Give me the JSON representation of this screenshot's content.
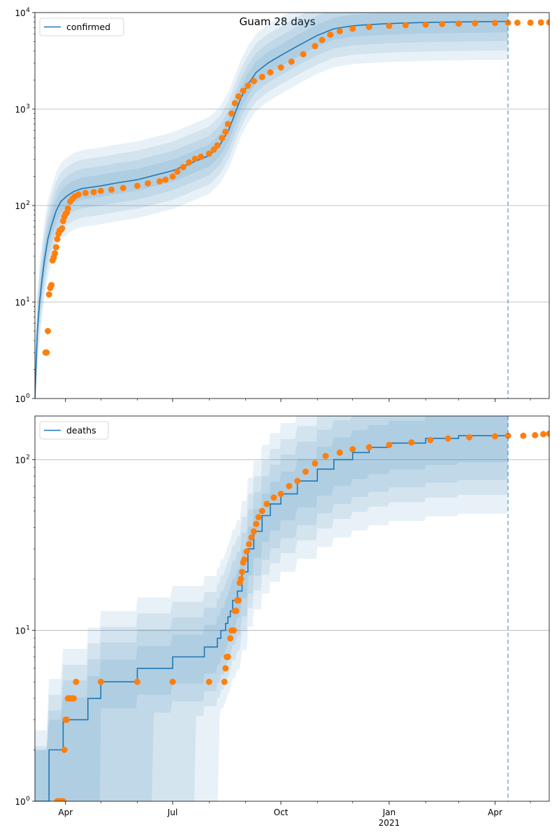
{
  "figure": {
    "title": "Guam 28 days"
  },
  "colors": {
    "model": "#1f77b4",
    "observed": "#ff7f0e",
    "band": "#1f77b4",
    "grid": "#b0b0b0",
    "forecast_line": "#1f77b4"
  },
  "x_axis": {
    "ticks": [
      {
        "date": "2020-04-01",
        "label": "Apr",
        "sublabel": ""
      },
      {
        "date": "2020-07-01",
        "label": "Jul",
        "sublabel": ""
      },
      {
        "date": "2020-10-01",
        "label": "Oct",
        "sublabel": ""
      },
      {
        "date": "2021-01-01",
        "label": "Jan",
        "sublabel": "2021"
      },
      {
        "date": "2021-04-01",
        "label": "Apr",
        "sublabel": ""
      }
    ],
    "minor_ticks": [
      "2020-05-01",
      "2020-06-01",
      "2020-08-01",
      "2020-09-01",
      "2020-11-01",
      "2020-12-01",
      "2021-02-01",
      "2021-03-01",
      "2021-05-01"
    ]
  },
  "chart_data": [
    {
      "type": "line",
      "legend": [
        "confirmed"
      ],
      "legend_loc": "upper left",
      "yscale": "log",
      "ylim": [
        1,
        10000
      ],
      "xlim": [
        "2020-03-06",
        "2021-05-17"
      ],
      "grid": "y",
      "yticks": [
        {
          "value": 1,
          "base": "10",
          "exp": "0"
        },
        {
          "value": 10,
          "base": "10",
          "exp": "1"
        },
        {
          "value": 100,
          "base": "10",
          "exp": "2"
        },
        {
          "value": 1000,
          "base": "10",
          "exp": "3"
        },
        {
          "value": 10000,
          "base": "10",
          "exp": "4"
        }
      ],
      "forecast_start": "2021-04-12",
      "series": [
        {
          "name": "confirmed",
          "kind": "model",
          "points": [
            [
              "2020-03-06",
              1
            ],
            [
              "2020-03-08",
              5
            ],
            [
              "2020-03-10",
              10
            ],
            [
              "2020-03-12",
              17
            ],
            [
              "2020-03-14",
              27
            ],
            [
              "2020-03-17",
              45
            ],
            [
              "2020-03-20",
              62
            ],
            [
              "2020-03-24",
              88
            ],
            [
              "2020-03-28",
              110
            ],
            [
              "2020-04-02",
              125
            ],
            [
              "2020-04-08",
              140
            ],
            [
              "2020-04-15",
              150
            ],
            [
              "2020-05-01",
              160
            ],
            [
              "2020-05-15",
              172
            ],
            [
              "2020-06-01",
              185
            ],
            [
              "2020-06-15",
              205
            ],
            [
              "2020-07-01",
              230
            ],
            [
              "2020-07-15",
              270
            ],
            [
              "2020-08-01",
              330
            ],
            [
              "2020-08-10",
              420
            ],
            [
              "2020-08-18",
              620
            ],
            [
              "2020-08-23",
              900
            ],
            [
              "2020-08-28",
              1300
            ],
            [
              "2020-09-03",
              1800
            ],
            [
              "2020-09-10",
              2400
            ],
            [
              "2020-09-20",
              3000
            ],
            [
              "2020-10-01",
              3600
            ],
            [
              "2020-10-15",
              4500
            ],
            [
              "2020-11-01",
              5800
            ],
            [
              "2020-11-15",
              6800
            ],
            [
              "2020-12-01",
              7300
            ],
            [
              "2020-12-15",
              7500
            ],
            [
              "2021-01-01",
              7700
            ],
            [
              "2021-02-01",
              7900
            ],
            [
              "2021-03-01",
              8000
            ],
            [
              "2021-04-12",
              8100
            ]
          ],
          "band_factors": [
            1.3,
            1.6,
            2.0,
            2.5
          ]
        },
        {
          "name": "observed",
          "kind": "observed",
          "points": [
            [
              "2020-03-15",
              3
            ],
            [
              "2020-03-16",
              3
            ],
            [
              "2020-03-17",
              5
            ],
            [
              "2020-03-18",
              12
            ],
            [
              "2020-03-19",
              14
            ],
            [
              "2020-03-20",
              15
            ],
            [
              "2020-03-21",
              27
            ],
            [
              "2020-03-22",
              29
            ],
            [
              "2020-03-23",
              32
            ],
            [
              "2020-03-24",
              37
            ],
            [
              "2020-03-25",
              45
            ],
            [
              "2020-03-26",
              51
            ],
            [
              "2020-03-27",
              55
            ],
            [
              "2020-03-28",
              56
            ],
            [
              "2020-03-29",
              58
            ],
            [
              "2020-03-30",
              69
            ],
            [
              "2020-03-31",
              77
            ],
            [
              "2020-04-01",
              82
            ],
            [
              "2020-04-02",
              84
            ],
            [
              "2020-04-03",
              93
            ],
            [
              "2020-04-05",
              110
            ],
            [
              "2020-04-07",
              118
            ],
            [
              "2020-04-09",
              125
            ],
            [
              "2020-04-12",
              130
            ],
            [
              "2020-04-18",
              135
            ],
            [
              "2020-04-25",
              138
            ],
            [
              "2020-05-01",
              142
            ],
            [
              "2020-05-10",
              146
            ],
            [
              "2020-05-20",
              152
            ],
            [
              "2020-06-01",
              160
            ],
            [
              "2020-06-10",
              170
            ],
            [
              "2020-06-20",
              178
            ],
            [
              "2020-06-25",
              185
            ],
            [
              "2020-07-01",
              200
            ],
            [
              "2020-07-05",
              225
            ],
            [
              "2020-07-10",
              250
            ],
            [
              "2020-07-15",
              280
            ],
            [
              "2020-07-20",
              305
            ],
            [
              "2020-07-25",
              320
            ],
            [
              "2020-08-01",
              345
            ],
            [
              "2020-08-05",
              380
            ],
            [
              "2020-08-08",
              420
            ],
            [
              "2020-08-12",
              500
            ],
            [
              "2020-08-15",
              580
            ],
            [
              "2020-08-17",
              700
            ],
            [
              "2020-08-20",
              900
            ],
            [
              "2020-08-23",
              1150
            ],
            [
              "2020-08-26",
              1350
            ],
            [
              "2020-08-30",
              1550
            ],
            [
              "2020-09-03",
              1750
            ],
            [
              "2020-09-08",
              1950
            ],
            [
              "2020-09-15",
              2150
            ],
            [
              "2020-09-22",
              2400
            ],
            [
              "2020-10-01",
              2700
            ],
            [
              "2020-10-10",
              3100
            ],
            [
              "2020-10-20",
              3700
            ],
            [
              "2020-10-30",
              4500
            ],
            [
              "2020-11-05",
              5200
            ],
            [
              "2020-11-12",
              5900
            ],
            [
              "2020-11-20",
              6400
            ],
            [
              "2020-12-01",
              6800
            ],
            [
              "2020-12-15",
              7100
            ],
            [
              "2021-01-01",
              7300
            ],
            [
              "2021-01-15",
              7400
            ],
            [
              "2021-02-01",
              7500
            ],
            [
              "2021-02-15",
              7600
            ],
            [
              "2021-03-01",
              7700
            ],
            [
              "2021-03-15",
              7750
            ],
            [
              "2021-04-01",
              7800
            ],
            [
              "2021-04-12",
              7850
            ],
            [
              "2021-04-20",
              7850
            ],
            [
              "2021-05-01",
              7870
            ],
            [
              "2021-05-10",
              7900
            ],
            [
              "2021-05-17",
              7920
            ]
          ]
        }
      ]
    },
    {
      "type": "line",
      "legend": [
        "deaths"
      ],
      "legend_loc": "upper left",
      "yscale": "log",
      "ylim": [
        1,
        180
      ],
      "xlim": [
        "2020-03-06",
        "2021-05-17"
      ],
      "grid": "y",
      "yticks": [
        {
          "value": 1,
          "base": "10",
          "exp": "0"
        },
        {
          "value": 10,
          "base": "10",
          "exp": "1"
        },
        {
          "value": 100,
          "base": "10",
          "exp": "2"
        }
      ],
      "forecast_start": "2021-04-12",
      "series": [
        {
          "name": "deaths",
          "kind": "model",
          "step": true,
          "points": [
            [
              "2020-03-06",
              1
            ],
            [
              "2020-03-18",
              2
            ],
            [
              "2020-03-30",
              3
            ],
            [
              "2020-04-05",
              3
            ],
            [
              "2020-04-20",
              4
            ],
            [
              "2020-05-01",
              5
            ],
            [
              "2020-06-01",
              6
            ],
            [
              "2020-07-01",
              7
            ],
            [
              "2020-07-28",
              8
            ],
            [
              "2020-08-08",
              9
            ],
            [
              "2020-08-11",
              10
            ],
            [
              "2020-08-15",
              11
            ],
            [
              "2020-08-17",
              12
            ],
            [
              "2020-08-19",
              13
            ],
            [
              "2020-08-21",
              15
            ],
            [
              "2020-08-25",
              17
            ],
            [
              "2020-08-29",
              22
            ],
            [
              "2020-09-03",
              30
            ],
            [
              "2020-09-08",
              38
            ],
            [
              "2020-09-15",
              47
            ],
            [
              "2020-09-22",
              55
            ],
            [
              "2020-10-01",
              63
            ],
            [
              "2020-10-15",
              75
            ],
            [
              "2020-11-01",
              88
            ],
            [
              "2020-11-15",
              100
            ],
            [
              "2020-12-01",
              110
            ],
            [
              "2020-12-15",
              118
            ],
            [
              "2021-01-01",
              125
            ],
            [
              "2021-02-01",
              133
            ],
            [
              "2021-03-01",
              138
            ],
            [
              "2021-04-12",
              142
            ]
          ],
          "band_levels": [
            {
              "low": 0.7,
              "high": 1.35,
              "floor_until": "2020-05-01"
            },
            {
              "low": 0.55,
              "high": 1.7,
              "floor_until": "2020-06-15"
            },
            {
              "low": 0.45,
              "high": 2.1,
              "floor_until": "2020-07-20"
            },
            {
              "low": 0.35,
              "high": 2.6,
              "floor_until": "2020-08-10"
            }
          ]
        },
        {
          "name": "observed",
          "kind": "observed",
          "points": [
            [
              "2020-03-25",
              1
            ],
            [
              "2020-03-26",
              1
            ],
            [
              "2020-03-27",
              1
            ],
            [
              "2020-03-28",
              1
            ],
            [
              "2020-03-29",
              1
            ],
            [
              "2020-03-30",
              1
            ],
            [
              "2020-03-31",
              2
            ],
            [
              "2020-04-01",
              3
            ],
            [
              "2020-04-02",
              3
            ],
            [
              "2020-04-03",
              4
            ],
            [
              "2020-04-04",
              4
            ],
            [
              "2020-04-05",
              4
            ],
            [
              "2020-04-06",
              4
            ],
            [
              "2020-04-07",
              4
            ],
            [
              "2020-04-08",
              4
            ],
            [
              "2020-04-10",
              5
            ],
            [
              "2020-05-01",
              5
            ],
            [
              "2020-06-01",
              5
            ],
            [
              "2020-07-01",
              5
            ],
            [
              "2020-08-01",
              5
            ],
            [
              "2020-08-14",
              5
            ],
            [
              "2020-08-15",
              6
            ],
            [
              "2020-08-16",
              7
            ],
            [
              "2020-08-17",
              7
            ],
            [
              "2020-08-19",
              9
            ],
            [
              "2020-08-20",
              10
            ],
            [
              "2020-08-21",
              10
            ],
            [
              "2020-08-22",
              10
            ],
            [
              "2020-08-23",
              13
            ],
            [
              "2020-08-24",
              13
            ],
            [
              "2020-08-25",
              15
            ],
            [
              "2020-08-26",
              15
            ],
            [
              "2020-08-27",
              19
            ],
            [
              "2020-08-28",
              20
            ],
            [
              "2020-08-29",
              22
            ],
            [
              "2020-08-30",
              25
            ],
            [
              "2020-08-31",
              26
            ],
            [
              "2020-09-02",
              29
            ],
            [
              "2020-09-04",
              32
            ],
            [
              "2020-09-06",
              35
            ],
            [
              "2020-09-08",
              38
            ],
            [
              "2020-09-10",
              42
            ],
            [
              "2020-09-12",
              46
            ],
            [
              "2020-09-15",
              50
            ],
            [
              "2020-09-19",
              55
            ],
            [
              "2020-09-25",
              60
            ],
            [
              "2020-10-01",
              63
            ],
            [
              "2020-10-08",
              70
            ],
            [
              "2020-10-15",
              75
            ],
            [
              "2020-10-22",
              85
            ],
            [
              "2020-10-30",
              95
            ],
            [
              "2020-11-08",
              105
            ],
            [
              "2020-11-20",
              110
            ],
            [
              "2020-12-01",
              115
            ],
            [
              "2020-12-15",
              118
            ],
            [
              "2021-01-01",
              122
            ],
            [
              "2021-01-20",
              126
            ],
            [
              "2021-02-05",
              130
            ],
            [
              "2021-02-20",
              133
            ],
            [
              "2021-03-10",
              135
            ],
            [
              "2021-04-01",
              137
            ],
            [
              "2021-04-12",
              138
            ],
            [
              "2021-04-25",
              138
            ],
            [
              "2021-05-05",
              139
            ],
            [
              "2021-05-12",
              141
            ],
            [
              "2021-05-17",
              142
            ]
          ]
        }
      ]
    }
  ]
}
